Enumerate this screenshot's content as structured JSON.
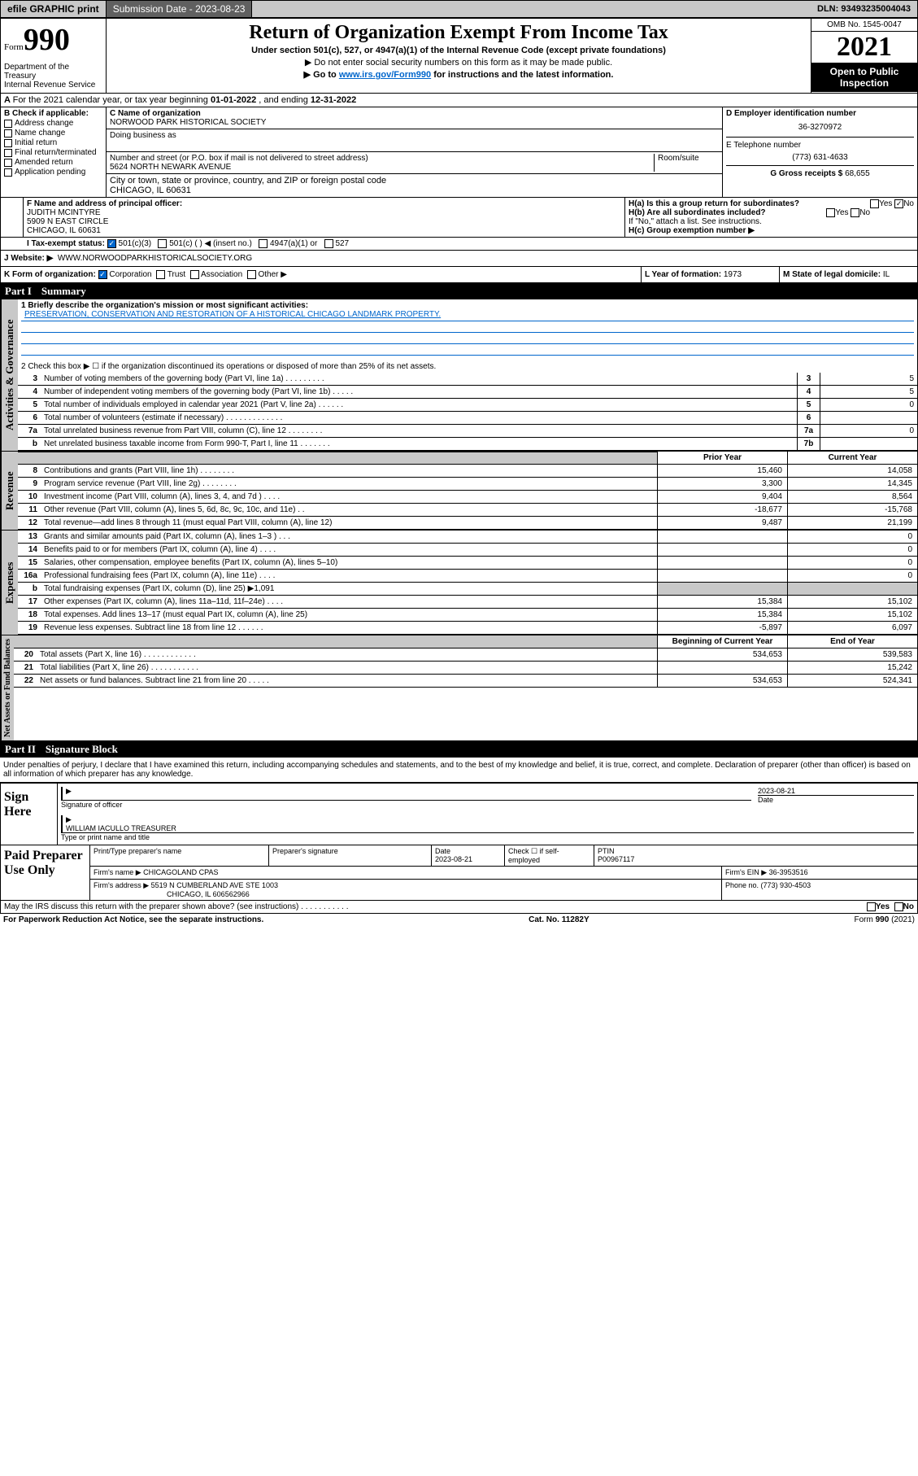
{
  "topbar": {
    "efile": "efile GRAPHIC print",
    "submission_label": "Submission Date - ",
    "submission_date": "2023-08-23",
    "dln_label": "DLN: ",
    "dln": "93493235004043"
  },
  "header": {
    "form_small": "Form",
    "form_big": "990",
    "title": "Return of Organization Exempt From Income Tax",
    "subtitle": "Under section 501(c), 527, or 4947(a)(1) of the Internal Revenue Code (except private foundations)",
    "note1": "▶ Do not enter social security numbers on this form as it may be made public.",
    "note2_pre": "▶ Go to ",
    "note2_link": "www.irs.gov/Form990",
    "note2_post": " for instructions and the latest information.",
    "omb": "OMB No. 1545-0047",
    "year": "2021",
    "open": "Open to Public Inspection",
    "dept1": "Department of the Treasury",
    "dept2": "Internal Revenue Service"
  },
  "lineA": {
    "text_pre": "For the 2021 calendar year, or tax year beginning ",
    "begin": "01-01-2022",
    "mid": " , and ending ",
    "end": "12-31-2022"
  },
  "boxB": {
    "label": "B Check if applicable:",
    "items": [
      "Address change",
      "Name change",
      "Initial return",
      "Final return/terminated",
      "Amended return",
      "Application pending"
    ]
  },
  "boxC": {
    "label": "C Name of organization",
    "name": "NORWOOD PARK HISTORICAL SOCIETY",
    "dba_label": "Doing business as",
    "street_label": "Number and street (or P.O. box if mail is not delivered to street address)",
    "room_label": "Room/suite",
    "street": "5624 NORTH NEWARK AVENUE",
    "city_label": "City or town, state or province, country, and ZIP or foreign postal code",
    "city": "CHICAGO, IL  60631"
  },
  "boxD": {
    "label": "D Employer identification number",
    "ein": "36-3270972"
  },
  "boxE": {
    "label": "E Telephone number",
    "phone": "(773) 631-4633"
  },
  "boxG": {
    "label": "G Gross receipts $ ",
    "val": "68,655"
  },
  "boxF": {
    "label": "F Name and address of principal officer:",
    "name": "JUDITH MCINTYRE",
    "addr1": "5909 N EAST CIRCLE",
    "addr2": "CHICAGO, IL  60631"
  },
  "boxH": {
    "ha": "H(a)  Is this a group return for subordinates?",
    "hb": "H(b)  Are all subordinates included?",
    "hnote": "If \"No,\" attach a list. See instructions.",
    "hc": "H(c)  Group exemption number ▶",
    "yes": "Yes",
    "no": "No"
  },
  "lineI": {
    "label": "I   Tax-exempt status:",
    "opts": [
      "501(c)(3)",
      "501(c) (   ) ◀ (insert no.)",
      "4947(a)(1) or",
      "527"
    ]
  },
  "lineJ": {
    "label": "J   Website: ▶",
    "url": "WWW.NORWOODPARKHISTORICALSOCIETY.ORG"
  },
  "lineK": {
    "label": "K Form of organization:",
    "opts": [
      "Corporation",
      "Trust",
      "Association",
      "Other ▶"
    ]
  },
  "lineL": {
    "label": "L Year of formation: ",
    "val": "1973"
  },
  "lineM": {
    "label": "M State of legal domicile: ",
    "val": "IL"
  },
  "part1": {
    "num": "Part I",
    "title": "Summary"
  },
  "summary": {
    "q1_label": "1   Briefly describe the organization's mission or most significant activities:",
    "q1_text": "PRESERVATION, CONSERVATION AND RESTORATION OF A HISTORICAL CHICAGO LANDMARK PROPERTY.",
    "q2": "2   Check this box ▶ ☐  if the organization discontinued its operations or disposed of more than 25% of its net assets.",
    "rows_gov": [
      {
        "n": "3",
        "d": "Number of voting members of the governing body (Part VI, line 1a)  .   .   .   .   .   .   .   .   .",
        "b": "3",
        "v": "5"
      },
      {
        "n": "4",
        "d": "Number of independent voting members of the governing body (Part VI, line 1b)  .   .   .   .   .",
        "b": "4",
        "v": "5"
      },
      {
        "n": "5",
        "d": "Total number of individuals employed in calendar year 2021 (Part V, line 2a)  .   .   .   .   .   .",
        "b": "5",
        "v": "0"
      },
      {
        "n": "6",
        "d": "Total number of volunteers (estimate if necessary)  .   .   .   .   .   .   .   .   .   .   .   .   .",
        "b": "6",
        "v": ""
      },
      {
        "n": "7a",
        "d": "Total unrelated business revenue from Part VIII, column (C), line 12  .   .   .   .   .   .   .   .",
        "b": "7a",
        "v": "0"
      },
      {
        "n": "b",
        "d": "Net unrelated business taxable income from Form 990-T, Part I, line 11  .   .   .   .   .   .   .",
        "b": "7b",
        "v": ""
      }
    ],
    "col_prior": "Prior Year",
    "col_current": "Current Year",
    "rows_rev": [
      {
        "n": "8",
        "d": "Contributions and grants (Part VIII, line 1h)  .   .   .   .   .   .   .   .",
        "p": "15,460",
        "c": "14,058"
      },
      {
        "n": "9",
        "d": "Program service revenue (Part VIII, line 2g)  .   .   .   .   .   .   .   .",
        "p": "3,300",
        "c": "14,345"
      },
      {
        "n": "10",
        "d": "Investment income (Part VIII, column (A), lines 3, 4, and 7d )  .   .   .   .",
        "p": "9,404",
        "c": "8,564"
      },
      {
        "n": "11",
        "d": "Other revenue (Part VIII, column (A), lines 5, 6d, 8c, 9c, 10c, and 11e)  .   .",
        "p": "-18,677",
        "c": "-15,768"
      },
      {
        "n": "12",
        "d": "Total revenue—add lines 8 through 11 (must equal Part VIII, column (A), line 12)",
        "p": "9,487",
        "c": "21,199"
      }
    ],
    "rows_exp": [
      {
        "n": "13",
        "d": "Grants and similar amounts paid (Part IX, column (A), lines 1–3 )  .   .   .",
        "p": "",
        "c": "0"
      },
      {
        "n": "14",
        "d": "Benefits paid to or for members (Part IX, column (A), line 4)  .   .   .   .",
        "p": "",
        "c": "0"
      },
      {
        "n": "15",
        "d": "Salaries, other compensation, employee benefits (Part IX, column (A), lines 5–10)",
        "p": "",
        "c": "0"
      },
      {
        "n": "16a",
        "d": "Professional fundraising fees (Part IX, column (A), line 11e)  .   .   .   .",
        "p": "",
        "c": "0"
      },
      {
        "n": "b",
        "d": "Total fundraising expenses (Part IX, column (D), line 25) ▶1,091",
        "p": "SHADE",
        "c": "SHADE"
      },
      {
        "n": "17",
        "d": "Other expenses (Part IX, column (A), lines 11a–11d, 11f–24e)  .   .   .   .",
        "p": "15,384",
        "c": "15,102"
      },
      {
        "n": "18",
        "d": "Total expenses. Add lines 13–17 (must equal Part IX, column (A), line 25)",
        "p": "15,384",
        "c": "15,102"
      },
      {
        "n": "19",
        "d": "Revenue less expenses. Subtract line 18 from line 12  .   .   .   .   .   .",
        "p": "-5,897",
        "c": "6,097"
      }
    ],
    "col_begin": "Beginning of Current Year",
    "col_end": "End of Year",
    "rows_net": [
      {
        "n": "20",
        "d": "Total assets (Part X, line 16)  .   .   .   .   .   .   .   .   .   .   .   .",
        "p": "534,653",
        "c": "539,583"
      },
      {
        "n": "21",
        "d": "Total liabilities (Part X, line 26)  .   .   .   .   .   .   .   .   .   .   .",
        "p": "",
        "c": "15,242"
      },
      {
        "n": "22",
        "d": "Net assets or fund balances. Subtract line 21 from line 20  .   .   .   .   .",
        "p": "534,653",
        "c": "524,341"
      }
    ]
  },
  "vert": {
    "gov": "Activities & Governance",
    "rev": "Revenue",
    "exp": "Expenses",
    "net": "Net Assets or Fund Balances"
  },
  "part2": {
    "num": "Part II",
    "title": "Signature Block"
  },
  "sig": {
    "decl": "Under penalties of perjury, I declare that I have examined this return, including accompanying schedules and statements, and to the best of my knowledge and belief, it is true, correct, and complete. Declaration of preparer (other than officer) is based on all information of which preparer has any knowledge.",
    "sign_here": "Sign Here",
    "sig_officer": "Signature of officer",
    "date": "Date",
    "sig_date": "2023-08-21",
    "officer_name": "WILLIAM IACULLO  TREASURER",
    "type_name": "Type or print name and title",
    "paid": "Paid Preparer Use Only",
    "prep_name_label": "Print/Type preparer's name",
    "prep_sig_label": "Preparer's signature",
    "prep_date_label": "Date",
    "prep_date": "2023-08-21",
    "check_if": "Check ☐ if self-employed",
    "ptin_label": "PTIN",
    "ptin": "P00967117",
    "firm_name_label": "Firm's name     ▶ ",
    "firm_name": "CHICAGOLAND CPAS",
    "firm_ein_label": "Firm's EIN ▶ ",
    "firm_ein": "36-3953516",
    "firm_addr_label": "Firm's address ▶ ",
    "firm_addr1": "5519 N CUMBERLAND AVE STE 1003",
    "firm_addr2": "CHICAGO, IL  606562966",
    "phone_label": "Phone no. ",
    "phone": "(773) 930-4503",
    "discuss": "May the IRS discuss this return with the preparer shown above? (see instructions)  .   .   .   .   .   .   .   .   .   .   .",
    "yes": "Yes",
    "no": "No"
  },
  "footer": {
    "paperwork": "For Paperwork Reduction Act Notice, see the separate instructions.",
    "catno": "Cat. No. 11282Y",
    "formno": "Form 990 (2021)"
  }
}
